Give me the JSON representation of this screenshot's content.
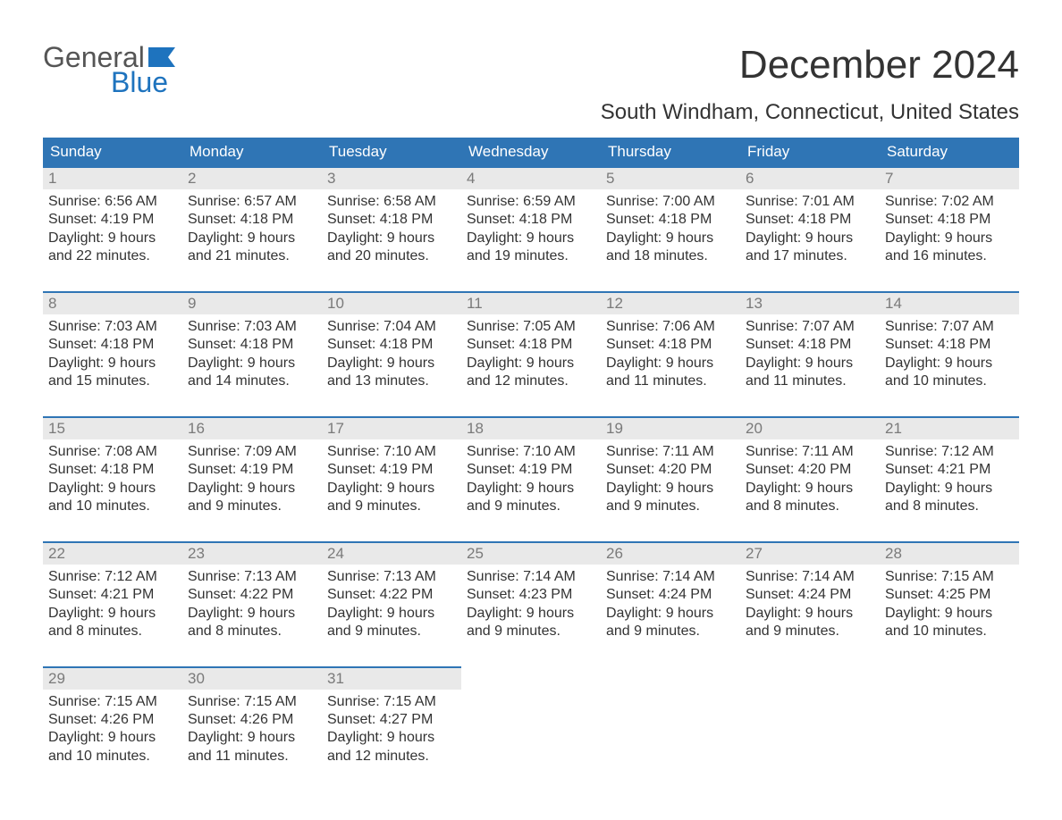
{
  "brand": {
    "word1": "General",
    "word2": "Blue",
    "flag_color": "#1e73be",
    "word1_color": "#555555"
  },
  "title": "December 2024",
  "location": "South Windham, Connecticut, United States",
  "colors": {
    "header_bg": "#2f75b5",
    "header_fg": "#ffffff",
    "daynum_bg": "#e9e9e9",
    "daynum_fg": "#7a7a7a",
    "rule": "#2f75b5",
    "body_fg": "#333333",
    "page_bg": "#ffffff"
  },
  "typography": {
    "title_fontsize": 44,
    "location_fontsize": 24,
    "header_fontsize": 17,
    "body_fontsize": 16
  },
  "day_headers": [
    "Sunday",
    "Monday",
    "Tuesday",
    "Wednesday",
    "Thursday",
    "Friday",
    "Saturday"
  ],
  "weeks": [
    [
      {
        "n": "1",
        "sunrise": "Sunrise: 6:56 AM",
        "sunset": "Sunset: 4:19 PM",
        "d1": "Daylight: 9 hours",
        "d2": "and 22 minutes."
      },
      {
        "n": "2",
        "sunrise": "Sunrise: 6:57 AM",
        "sunset": "Sunset: 4:18 PM",
        "d1": "Daylight: 9 hours",
        "d2": "and 21 minutes."
      },
      {
        "n": "3",
        "sunrise": "Sunrise: 6:58 AM",
        "sunset": "Sunset: 4:18 PM",
        "d1": "Daylight: 9 hours",
        "d2": "and 20 minutes."
      },
      {
        "n": "4",
        "sunrise": "Sunrise: 6:59 AM",
        "sunset": "Sunset: 4:18 PM",
        "d1": "Daylight: 9 hours",
        "d2": "and 19 minutes."
      },
      {
        "n": "5",
        "sunrise": "Sunrise: 7:00 AM",
        "sunset": "Sunset: 4:18 PM",
        "d1": "Daylight: 9 hours",
        "d2": "and 18 minutes."
      },
      {
        "n": "6",
        "sunrise": "Sunrise: 7:01 AM",
        "sunset": "Sunset: 4:18 PM",
        "d1": "Daylight: 9 hours",
        "d2": "and 17 minutes."
      },
      {
        "n": "7",
        "sunrise": "Sunrise: 7:02 AM",
        "sunset": "Sunset: 4:18 PM",
        "d1": "Daylight: 9 hours",
        "d2": "and 16 minutes."
      }
    ],
    [
      {
        "n": "8",
        "sunrise": "Sunrise: 7:03 AM",
        "sunset": "Sunset: 4:18 PM",
        "d1": "Daylight: 9 hours",
        "d2": "and 15 minutes."
      },
      {
        "n": "9",
        "sunrise": "Sunrise: 7:03 AM",
        "sunset": "Sunset: 4:18 PM",
        "d1": "Daylight: 9 hours",
        "d2": "and 14 minutes."
      },
      {
        "n": "10",
        "sunrise": "Sunrise: 7:04 AM",
        "sunset": "Sunset: 4:18 PM",
        "d1": "Daylight: 9 hours",
        "d2": "and 13 minutes."
      },
      {
        "n": "11",
        "sunrise": "Sunrise: 7:05 AM",
        "sunset": "Sunset: 4:18 PM",
        "d1": "Daylight: 9 hours",
        "d2": "and 12 minutes."
      },
      {
        "n": "12",
        "sunrise": "Sunrise: 7:06 AM",
        "sunset": "Sunset: 4:18 PM",
        "d1": "Daylight: 9 hours",
        "d2": "and 11 minutes."
      },
      {
        "n": "13",
        "sunrise": "Sunrise: 7:07 AM",
        "sunset": "Sunset: 4:18 PM",
        "d1": "Daylight: 9 hours",
        "d2": "and 11 minutes."
      },
      {
        "n": "14",
        "sunrise": "Sunrise: 7:07 AM",
        "sunset": "Sunset: 4:18 PM",
        "d1": "Daylight: 9 hours",
        "d2": "and 10 minutes."
      }
    ],
    [
      {
        "n": "15",
        "sunrise": "Sunrise: 7:08 AM",
        "sunset": "Sunset: 4:18 PM",
        "d1": "Daylight: 9 hours",
        "d2": "and 10 minutes."
      },
      {
        "n": "16",
        "sunrise": "Sunrise: 7:09 AM",
        "sunset": "Sunset: 4:19 PM",
        "d1": "Daylight: 9 hours",
        "d2": "and 9 minutes."
      },
      {
        "n": "17",
        "sunrise": "Sunrise: 7:10 AM",
        "sunset": "Sunset: 4:19 PM",
        "d1": "Daylight: 9 hours",
        "d2": "and 9 minutes."
      },
      {
        "n": "18",
        "sunrise": "Sunrise: 7:10 AM",
        "sunset": "Sunset: 4:19 PM",
        "d1": "Daylight: 9 hours",
        "d2": "and 9 minutes."
      },
      {
        "n": "19",
        "sunrise": "Sunrise: 7:11 AM",
        "sunset": "Sunset: 4:20 PM",
        "d1": "Daylight: 9 hours",
        "d2": "and 9 minutes."
      },
      {
        "n": "20",
        "sunrise": "Sunrise: 7:11 AM",
        "sunset": "Sunset: 4:20 PM",
        "d1": "Daylight: 9 hours",
        "d2": "and 8 minutes."
      },
      {
        "n": "21",
        "sunrise": "Sunrise: 7:12 AM",
        "sunset": "Sunset: 4:21 PM",
        "d1": "Daylight: 9 hours",
        "d2": "and 8 minutes."
      }
    ],
    [
      {
        "n": "22",
        "sunrise": "Sunrise: 7:12 AM",
        "sunset": "Sunset: 4:21 PM",
        "d1": "Daylight: 9 hours",
        "d2": "and 8 minutes."
      },
      {
        "n": "23",
        "sunrise": "Sunrise: 7:13 AM",
        "sunset": "Sunset: 4:22 PM",
        "d1": "Daylight: 9 hours",
        "d2": "and 8 minutes."
      },
      {
        "n": "24",
        "sunrise": "Sunrise: 7:13 AM",
        "sunset": "Sunset: 4:22 PM",
        "d1": "Daylight: 9 hours",
        "d2": "and 9 minutes."
      },
      {
        "n": "25",
        "sunrise": "Sunrise: 7:14 AM",
        "sunset": "Sunset: 4:23 PM",
        "d1": "Daylight: 9 hours",
        "d2": "and 9 minutes."
      },
      {
        "n": "26",
        "sunrise": "Sunrise: 7:14 AM",
        "sunset": "Sunset: 4:24 PM",
        "d1": "Daylight: 9 hours",
        "d2": "and 9 minutes."
      },
      {
        "n": "27",
        "sunrise": "Sunrise: 7:14 AM",
        "sunset": "Sunset: 4:24 PM",
        "d1": "Daylight: 9 hours",
        "d2": "and 9 minutes."
      },
      {
        "n": "28",
        "sunrise": "Sunrise: 7:15 AM",
        "sunset": "Sunset: 4:25 PM",
        "d1": "Daylight: 9 hours",
        "d2": "and 10 minutes."
      }
    ],
    [
      {
        "n": "29",
        "sunrise": "Sunrise: 7:15 AM",
        "sunset": "Sunset: 4:26 PM",
        "d1": "Daylight: 9 hours",
        "d2": "and 10 minutes."
      },
      {
        "n": "30",
        "sunrise": "Sunrise: 7:15 AM",
        "sunset": "Sunset: 4:26 PM",
        "d1": "Daylight: 9 hours",
        "d2": "and 11 minutes."
      },
      {
        "n": "31",
        "sunrise": "Sunrise: 7:15 AM",
        "sunset": "Sunset: 4:27 PM",
        "d1": "Daylight: 9 hours",
        "d2": "and 12 minutes."
      },
      null,
      null,
      null,
      null
    ]
  ]
}
